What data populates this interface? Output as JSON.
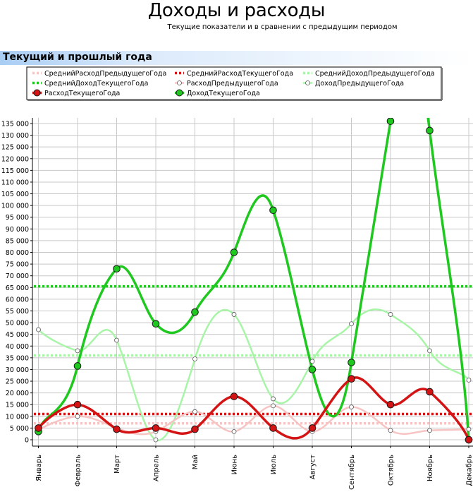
{
  "header": {
    "title": "Доходы и расходы",
    "subtitle": "Текущие показатели и в сравнении с предыдущим периодом",
    "section_title": "Текущий и прошлый года"
  },
  "chart_data": {
    "type": "line",
    "categories": [
      "Январь",
      "Февраль",
      "Март",
      "Апрель",
      "Май",
      "Июнь",
      "Июль",
      "Август",
      "Сентябрь",
      "Октябрь",
      "Ноябрь",
      "Декабрь"
    ],
    "ylim": [
      0,
      137000
    ],
    "yticks": [
      0,
      5000,
      10000,
      15000,
      20000,
      25000,
      30000,
      35000,
      40000,
      45000,
      50000,
      55000,
      60000,
      65000,
      70000,
      75000,
      80000,
      85000,
      90000,
      95000,
      100000,
      105000,
      110000,
      115000,
      120000,
      125000,
      130000,
      135000
    ],
    "ytick_labels": [
      "0",
      "5 000",
      "10 000",
      "15 000",
      "20 000",
      "25 000",
      "30 000",
      "35 000",
      "40 000",
      "45 000",
      "50 000",
      "55 000",
      "60 000",
      "65 000",
      "70 000",
      "75 000",
      "80 000",
      "85 000",
      "90 000",
      "95 000",
      "100 000",
      "105 000",
      "110 000",
      "115 000",
      "120 000",
      "125 000",
      "130 000",
      "135 000"
    ],
    "grid": true,
    "legend": {
      "placement": "top",
      "order": [
        "СреднийРасходПредыдущегоГода",
        "СреднийРасходТекущегоГода",
        "СреднийДоходПредыдущегоГода",
        "СреднийДоходТекущегоГода",
        "РасходПредыдущегоГода",
        "ДоходПредыдущегоГода",
        "РасходТекущегоГода",
        "ДоходТекущегоГода"
      ]
    },
    "series": [
      {
        "name": "ДоходПредыдущегоГода",
        "style": "smooth",
        "color": "#a8f5a8",
        "width": 2.5,
        "marker": "small-hollow",
        "values": [
          47000,
          38000,
          42500,
          0,
          34500,
          53500,
          17500,
          33500,
          49500,
          53500,
          38000,
          25500
        ]
      },
      {
        "name": "РасходПредыдущегоГода",
        "style": "smooth",
        "color": "#f7c4c4",
        "width": 2.5,
        "marker": "small-hollow",
        "values": [
          4000,
          10000,
          5000,
          3500,
          12000,
          3500,
          14500,
          3500,
          14000,
          4000,
          4000,
          4500
        ]
      },
      {
        "name": "ДоходТекущегоГода",
        "style": "smooth",
        "color": "#1ec81e",
        "width": 3.5,
        "marker": "large-filled",
        "values": [
          3500,
          31500,
          73000,
          49500,
          54500,
          80000,
          98000,
          30000,
          33000,
          136000,
          132000,
          0
        ]
      },
      {
        "name": "РасходТекущегоГода",
        "style": "smooth",
        "color": "#d41414",
        "width": 3.5,
        "marker": "large-filled",
        "values": [
          5000,
          15000,
          4500,
          5000,
          4500,
          18500,
          5000,
          5000,
          26000,
          15000,
          20500,
          0
        ]
      },
      {
        "name": "СреднийДоходТекущегоГода",
        "style": "dotted",
        "color": "#1ec81e",
        "width": 3.5,
        "value": 65500
      },
      {
        "name": "СреднийДоходПредыдущегоГода",
        "style": "dotted",
        "color": "#a8f5a8",
        "width": 3.5,
        "value": 36000
      },
      {
        "name": "СреднийРасходТекущегоГода",
        "style": "dotted",
        "color": "#d41414",
        "width": 3.5,
        "value": 11000
      },
      {
        "name": "СреднийРасходПредыдущегоГода",
        "style": "dotted",
        "color": "#f7c4c4",
        "width": 3.5,
        "value": 7000
      }
    ]
  }
}
